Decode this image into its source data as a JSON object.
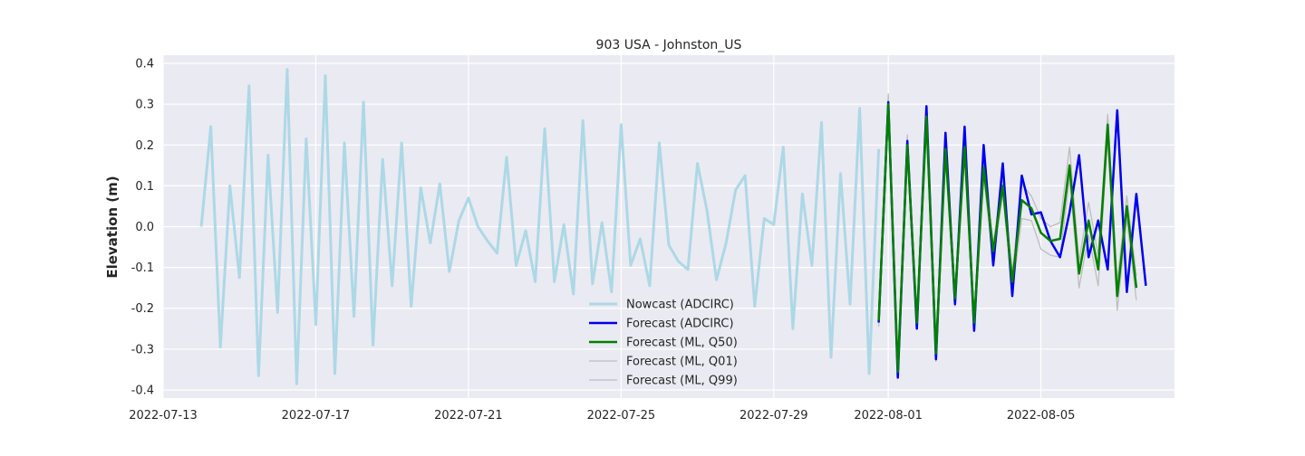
{
  "chart_data": {
    "type": "line",
    "title": "903 USA - Johnston_US",
    "xlabel": "",
    "ylabel": "Elevation (m)",
    "xlim": [
      "2022-07-13T00:00",
      "2022-08-08T12:00"
    ],
    "ylim": [
      -0.42,
      0.42
    ],
    "x_ticks": [
      "2022-07-13",
      "2022-07-17",
      "2022-07-21",
      "2022-07-25",
      "2022-07-29",
      "2022-08-01",
      "2022-08-05"
    ],
    "y_ticks": [
      -0.4,
      -0.3,
      -0.2,
      -0.1,
      0.0,
      0.1,
      0.2,
      0.3,
      0.4
    ],
    "grid": true,
    "legend_position": "lower-center",
    "series": [
      {
        "name": "Nowcast (ADCIRC)",
        "color": "#add8e6",
        "x_start": "2022-07-14T00:00",
        "step_hours": 6,
        "values": [
          0.0,
          0.245,
          -0.295,
          0.1,
          -0.125,
          0.345,
          -0.365,
          0.175,
          -0.21,
          0.385,
          -0.385,
          0.215,
          -0.24,
          0.37,
          -0.36,
          0.205,
          -0.22,
          0.305,
          -0.29,
          0.165,
          -0.145,
          0.205,
          -0.195,
          0.095,
          -0.04,
          0.105,
          -0.11,
          0.015,
          0.07,
          0.0,
          -0.035,
          -0.065,
          0.17,
          -0.095,
          -0.01,
          -0.135,
          0.24,
          -0.135,
          0.005,
          -0.165,
          0.26,
          -0.14,
          0.01,
          -0.16,
          0.25,
          -0.095,
          -0.03,
          -0.145,
          0.205,
          -0.045,
          -0.085,
          -0.105,
          0.155,
          0.04,
          -0.13,
          -0.04,
          0.09,
          0.125,
          -0.195,
          0.02,
          0.005,
          0.195,
          -0.25,
          0.08,
          -0.095,
          0.255,
          -0.32,
          0.13,
          -0.19,
          0.29,
          -0.36,
          0.19
        ]
      },
      {
        "name": "Forecast (ADCIRC)",
        "color": "#0000ee",
        "x_start": "2022-07-31T18:00",
        "step_hours": 6,
        "values": [
          -0.235,
          0.305,
          -0.37,
          0.21,
          -0.25,
          0.295,
          -0.325,
          0.23,
          -0.19,
          0.245,
          -0.255,
          0.2,
          -0.095,
          0.155,
          -0.17,
          0.125,
          0.03,
          0.035,
          -0.035,
          -0.075,
          0.035,
          0.175,
          -0.075,
          0.015,
          -0.105,
          0.285,
          -0.16,
          0.08,
          -0.145
        ]
      },
      {
        "name": "Forecast (ML, Q50)",
        "color": "#008000",
        "x_start": "2022-07-31T18:00",
        "step_hours": 6,
        "values": [
          -0.23,
          0.3,
          -0.355,
          0.2,
          -0.235,
          0.27,
          -0.31,
          0.19,
          -0.175,
          0.195,
          -0.235,
          0.145,
          -0.06,
          0.1,
          -0.135,
          0.065,
          0.045,
          -0.015,
          -0.035,
          -0.03,
          0.15,
          -0.115,
          0.015,
          -0.105,
          0.25,
          -0.17,
          0.05,
          -0.15
        ]
      },
      {
        "name": "Forecast (ML, Q01)",
        "color": "#bebebe",
        "x_start": "2022-07-31T18:00",
        "step_hours": 6,
        "values": [
          -0.245,
          0.285,
          -0.37,
          0.17,
          -0.245,
          0.245,
          -0.33,
          0.17,
          -0.195,
          0.17,
          -0.255,
          0.12,
          -0.085,
          0.08,
          -0.16,
          0.02,
          0.015,
          -0.055,
          -0.07,
          -0.075,
          0.12,
          -0.15,
          -0.02,
          -0.145,
          0.215,
          -0.205,
          0.02,
          -0.18
        ]
      },
      {
        "name": "Forecast (ML, Q99)",
        "color": "#bebebe",
        "x_start": "2022-07-31T18:00",
        "step_hours": 6,
        "values": [
          -0.215,
          0.325,
          -0.34,
          0.225,
          -0.215,
          0.29,
          -0.29,
          0.21,
          -0.155,
          0.215,
          -0.215,
          0.165,
          -0.04,
          0.12,
          -0.11,
          0.105,
          0.075,
          0.02,
          0.0,
          0.01,
          0.195,
          -0.085,
          0.06,
          -0.07,
          0.275,
          -0.135,
          0.075,
          -0.12
        ]
      }
    ]
  }
}
